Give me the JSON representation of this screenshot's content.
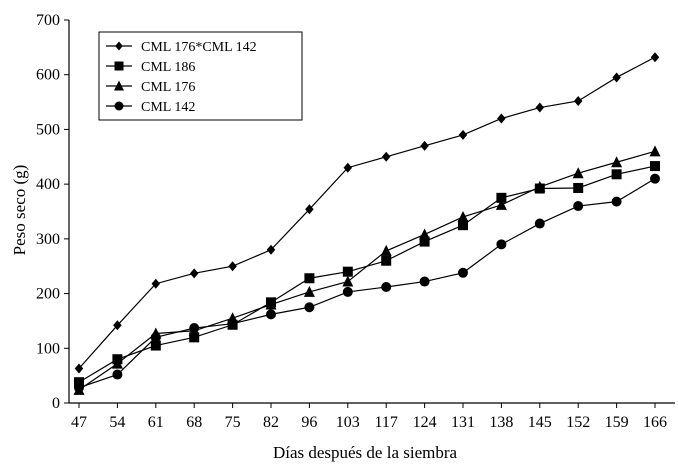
{
  "chart_data": {
    "type": "line",
    "title": "",
    "xlabel": "Días después de la siembra",
    "ylabel": "Peso seco (g)",
    "ylim": [
      0,
      700
    ],
    "yticks": [
      0,
      100,
      200,
      300,
      400,
      500,
      600,
      700
    ],
    "categories": [
      "47",
      "54",
      "61",
      "68",
      "75",
      "82",
      "96",
      "103",
      "117",
      "124",
      "131",
      "138",
      "145",
      "152",
      "159",
      "166"
    ],
    "grid": false,
    "legend": "top-left",
    "series": [
      {
        "name": "CML 176*CML 142",
        "marker": "diamond",
        "values": [
          63,
          142,
          218,
          237,
          250,
          280,
          354,
          430,
          450,
          470,
          490,
          520,
          540,
          552,
          595,
          632
        ]
      },
      {
        "name": "CML 186",
        "marker": "square",
        "values": [
          38,
          80,
          105,
          120,
          143,
          184,
          228,
          240,
          260,
          295,
          325,
          375,
          392,
          393,
          418,
          433
        ]
      },
      {
        "name": "CML 176",
        "marker": "triangle",
        "values": [
          24,
          72,
          127,
          132,
          155,
          180,
          203,
          222,
          278,
          308,
          340,
          362,
          395,
          420,
          440,
          460
        ]
      },
      {
        "name": "CML 142",
        "marker": "circle",
        "values": [
          28,
          52,
          120,
          137,
          145,
          162,
          175,
          203,
          212,
          222,
          238,
          290,
          328,
          360,
          368,
          410
        ]
      }
    ]
  }
}
